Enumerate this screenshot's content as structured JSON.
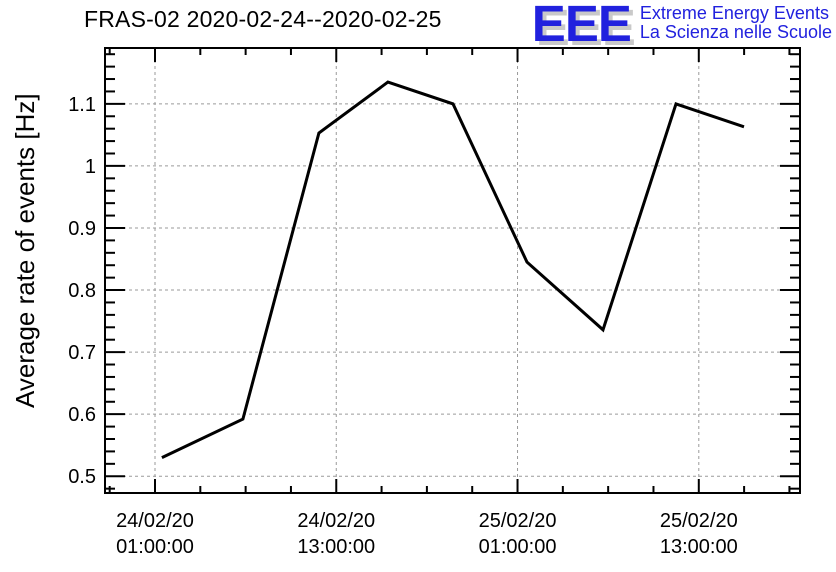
{
  "header": {
    "title": "FRAS-02 2020-02-24--2020-02-25"
  },
  "logo": {
    "letters": "EEE",
    "line1": "Extreme Energy Events",
    "line2": "La Scienza nelle Scuole",
    "color": "#2121de",
    "shadow_color": "#c9c9c9"
  },
  "chart_data": {
    "type": "line",
    "title": "FRAS-02 2020-02-24--2020-02-25",
    "xlabel": "",
    "ylabel": "Average rate of events [Hz]",
    "legend": "none",
    "grid": {
      "show": true,
      "color": "#9a9a9a",
      "dash": "3,3"
    },
    "x_axis": {
      "unit": "hours since 24/02/20 00:00:00",
      "range": [
        -2.31,
        43.7
      ],
      "minor_tick_step_hours": 3,
      "major_tick_interval_hours": 12,
      "major_ticks": [
        {
          "hours": 1,
          "date": "24/02/20",
          "time": "01:00:00"
        },
        {
          "hours": 13,
          "date": "24/02/20",
          "time": "13:00:00"
        },
        {
          "hours": 25,
          "date": "25/02/20",
          "time": "01:00:00"
        },
        {
          "hours": 37,
          "date": "25/02/20",
          "time": "13:00:00"
        }
      ]
    },
    "y_axis": {
      "range": [
        0.473,
        1.19
      ],
      "minor_tick_step": 0.02,
      "major_ticks": [
        0.5,
        0.6,
        0.7,
        0.8,
        0.9,
        1,
        1.1
      ],
      "major_tick_labels": [
        "0.5",
        "0.6",
        "0.7",
        "0.8",
        "0.9",
        "1",
        "1.1"
      ]
    },
    "series": [
      {
        "name": "average-rate-of-events",
        "color": "#000000",
        "marker": "none",
        "points": [
          {
            "time": "24/02/20 ~01:30",
            "hours": 1.46,
            "hz": 0.53
          },
          {
            "time": "24/02/20 ~06:50",
            "hours": 6.82,
            "hz": 0.592
          },
          {
            "time": "24/02/20 ~11:50",
            "hours": 11.85,
            "hz": 1.053
          },
          {
            "time": "24/02/20 ~16:25",
            "hours": 16.42,
            "hz": 1.135
          },
          {
            "time": "24/02/20 ~20:45",
            "hours": 20.73,
            "hz": 1.1
          },
          {
            "time": "25/02/20 ~01:40",
            "hours": 25.63,
            "hz": 0.845
          },
          {
            "time": "25/02/20 ~06:40",
            "hours": 30.66,
            "hz": 0.736
          },
          {
            "time": "25/02/20 ~11:30",
            "hours": 35.49,
            "hz": 1.1
          },
          {
            "time": "25/02/20 ~16:00",
            "hours": 39.99,
            "hz": 1.063
          }
        ]
      }
    ]
  }
}
